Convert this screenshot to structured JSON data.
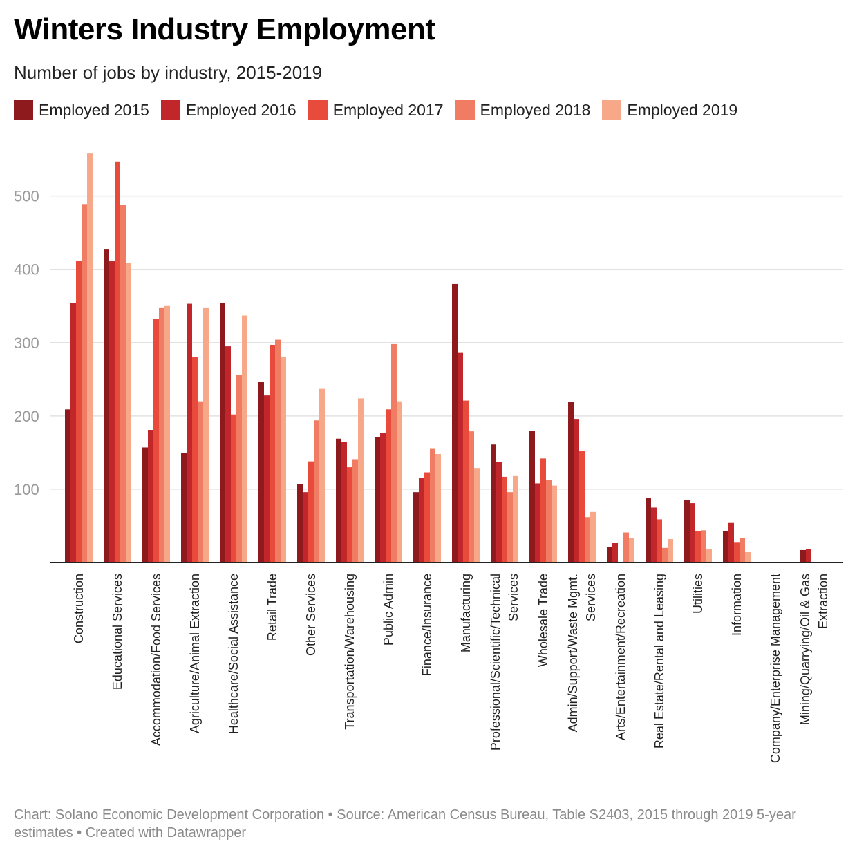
{
  "title": "Winters Industry Employment",
  "subtitle": "Number of jobs by industry, 2015-2019",
  "footer": "Chart: Solano Economic Development Corporation • Source: American Census Bureau, Table S2403, 2015 through 2019 5-year estimates • Created with Datawrapper",
  "colors": [
    "#8f1a1e",
    "#c0262a",
    "#e84b3c",
    "#f07d63",
    "#f7a888"
  ],
  "chart_data": {
    "type": "bar",
    "title": "Winters Industry Employment",
    "subtitle": "Number of jobs by industry, 2015-2019",
    "xlabel": "",
    "ylabel": "",
    "ylim": [
      0,
      560
    ],
    "yticks": [
      100,
      200,
      300,
      400,
      500
    ],
    "grid": true,
    "legend_position": "top",
    "categories": [
      [
        "Construction"
      ],
      [
        "Educational Services"
      ],
      [
        "Accommodation/Food Services"
      ],
      [
        "Agriculture/Animal Extraction"
      ],
      [
        "Healthcare/Social Assistance"
      ],
      [
        "Retail Trade"
      ],
      [
        "Other Services"
      ],
      [
        "Transportation/Warehousing"
      ],
      [
        "Public Admin"
      ],
      [
        "Finance/Insurance"
      ],
      [
        "Manufacturing"
      ],
      [
        "Professional/Scientific/Technical",
        "Services"
      ],
      [
        "Wholesale Trade"
      ],
      [
        "Admin/Support/Waste Mgmt.",
        "Services"
      ],
      [
        "Arts/Entertainment/Recreation"
      ],
      [
        "Real Estate/Rental and Leasing"
      ],
      [
        "Utilities"
      ],
      [
        "Information"
      ],
      [
        "Company/Enterprise Management"
      ],
      [
        "Mining/Quarrying/Oil & Gas",
        "Extraction"
      ]
    ],
    "series": [
      {
        "name": "Employed 2015",
        "values": [
          209,
          427,
          157,
          149,
          354,
          247,
          107,
          169,
          171,
          96,
          380,
          161,
          180,
          219,
          21,
          88,
          85,
          43,
          0,
          17
        ]
      },
      {
        "name": "Employed 2016",
        "values": [
          354,
          411,
          181,
          353,
          295,
          228,
          96,
          165,
          177,
          115,
          286,
          137,
          108,
          196,
          27,
          75,
          81,
          54,
          0,
          18
        ]
      },
      {
        "name": "Employed 2017",
        "values": [
          412,
          547,
          332,
          280,
          202,
          297,
          138,
          130,
          209,
          123,
          221,
          117,
          142,
          152,
          0,
          59,
          43,
          28,
          0,
          0
        ]
      },
      {
        "name": "Employed 2018",
        "values": [
          489,
          488,
          348,
          220,
          256,
          304,
          194,
          141,
          298,
          156,
          179,
          96,
          113,
          62,
          41,
          20,
          44,
          33,
          0,
          0
        ]
      },
      {
        "name": "Employed 2019",
        "values": [
          558,
          409,
          350,
          348,
          337,
          281,
          237,
          224,
          220,
          148,
          129,
          118,
          105,
          69,
          33,
          32,
          18,
          15,
          0,
          0
        ]
      }
    ]
  }
}
